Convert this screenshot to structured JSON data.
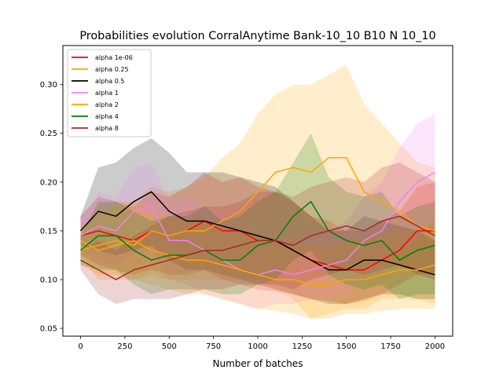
{
  "chart_data": {
    "type": "line",
    "title": "Probabilities evolution CorralAnytime Bank-10_10 B10 N 10_10",
    "xlabel": "Number of batches",
    "ylabel": "",
    "xlim": [
      -100,
      2100
    ],
    "ylim": [
      0.042,
      0.34
    ],
    "xticks": [
      0,
      250,
      500,
      750,
      1000,
      1250,
      1500,
      1750,
      2000
    ],
    "yticks": [
      0.05,
      0.1,
      0.15,
      0.2,
      0.25,
      0.3
    ],
    "xtick_labels": [
      "0",
      "250",
      "500",
      "750",
      "1000",
      "1250",
      "1500",
      "1750",
      "2000"
    ],
    "ytick_labels": [
      "0.05",
      "0.10",
      "0.15",
      "0.20",
      "0.25",
      "0.30"
    ],
    "legend_position": "top-left",
    "grid": false,
    "shaded_bands": true,
    "x": [
      0,
      100,
      200,
      300,
      400,
      500,
      600,
      700,
      800,
      900,
      1000,
      1100,
      1200,
      1300,
      1400,
      1500,
      1600,
      1700,
      1800,
      1900,
      2000
    ],
    "series": [
      {
        "name": "alpha 1e-06",
        "color": "#ff0000",
        "values": [
          0.145,
          0.15,
          0.145,
          0.14,
          0.15,
          0.145,
          0.15,
          0.16,
          0.15,
          0.15,
          0.14,
          0.14,
          0.13,
          0.12,
          0.115,
          0.11,
          0.11,
          0.12,
          0.13,
          0.15,
          0.15
        ],
        "lower": [
          0.125,
          0.115,
          0.11,
          0.105,
          0.11,
          0.105,
          0.105,
          0.11,
          0.1,
          0.095,
          0.09,
          0.088,
          0.085,
          0.08,
          0.078,
          0.075,
          0.078,
          0.085,
          0.095,
          0.105,
          0.105
        ],
        "upper": [
          0.165,
          0.185,
          0.18,
          0.175,
          0.19,
          0.185,
          0.195,
          0.21,
          0.2,
          0.205,
          0.195,
          0.19,
          0.18,
          0.165,
          0.16,
          0.15,
          0.15,
          0.16,
          0.17,
          0.195,
          0.2
        ]
      },
      {
        "name": "alpha 0.25",
        "color": "#ffa500",
        "values": [
          0.13,
          0.135,
          0.14,
          0.135,
          0.15,
          0.145,
          0.15,
          0.15,
          0.16,
          0.17,
          0.19,
          0.21,
          0.215,
          0.21,
          0.225,
          0.225,
          0.19,
          0.18,
          0.17,
          0.155,
          0.15
        ],
        "lower": [
          0.115,
          0.105,
          0.105,
          0.1,
          0.105,
          0.1,
          0.1,
          0.1,
          0.1,
          0.1,
          0.1,
          0.09,
          0.08,
          0.06,
          0.065,
          0.07,
          0.07,
          0.08,
          0.08,
          0.08,
          0.075
        ],
        "upper": [
          0.145,
          0.175,
          0.18,
          0.18,
          0.195,
          0.19,
          0.195,
          0.205,
          0.225,
          0.24,
          0.27,
          0.29,
          0.3,
          0.3,
          0.31,
          0.32,
          0.28,
          0.26,
          0.24,
          0.22,
          0.215
        ]
      },
      {
        "name": "alpha 0.5",
        "color": "#000000",
        "values": [
          0.15,
          0.17,
          0.165,
          0.18,
          0.19,
          0.17,
          0.16,
          0.16,
          0.155,
          0.15,
          0.145,
          0.14,
          0.13,
          0.12,
          0.11,
          0.11,
          0.12,
          0.12,
          0.115,
          0.11,
          0.105
        ],
        "lower": [
          0.135,
          0.13,
          0.125,
          0.13,
          0.135,
          0.12,
          0.11,
          0.11,
          0.105,
          0.1,
          0.095,
          0.09,
          0.085,
          0.08,
          0.075,
          0.075,
          0.08,
          0.085,
          0.085,
          0.08,
          0.08
        ],
        "upper": [
          0.165,
          0.215,
          0.22,
          0.235,
          0.245,
          0.23,
          0.21,
          0.21,
          0.21,
          0.205,
          0.2,
          0.195,
          0.18,
          0.165,
          0.15,
          0.15,
          0.165,
          0.16,
          0.155,
          0.15,
          0.14
        ]
      },
      {
        "name": "alpha 1",
        "color": "#ee82ee",
        "values": [
          0.145,
          0.155,
          0.15,
          0.17,
          0.175,
          0.14,
          0.14,
          0.13,
          0.12,
          0.11,
          0.105,
          0.11,
          0.105,
          0.11,
          0.115,
          0.12,
          0.14,
          0.15,
          0.18,
          0.2,
          0.21
        ],
        "lower": [
          0.13,
          0.12,
          0.115,
          0.125,
          0.13,
          0.1,
          0.095,
          0.085,
          0.08,
          0.075,
          0.07,
          0.075,
          0.075,
          0.08,
          0.08,
          0.085,
          0.1,
          0.105,
          0.13,
          0.14,
          0.15
        ],
        "upper": [
          0.16,
          0.19,
          0.185,
          0.215,
          0.22,
          0.18,
          0.185,
          0.175,
          0.165,
          0.15,
          0.14,
          0.145,
          0.14,
          0.145,
          0.15,
          0.16,
          0.185,
          0.2,
          0.235,
          0.26,
          0.27
        ]
      },
      {
        "name": "alpha 2",
        "color": "#ffa500",
        "values": [
          0.14,
          0.13,
          0.135,
          0.14,
          0.13,
          0.125,
          0.12,
          0.12,
          0.115,
          0.11,
          0.105,
          0.1,
          0.1,
          0.095,
          0.095,
          0.1,
          0.1,
          0.105,
          0.11,
          0.11,
          0.115
        ],
        "lower": [
          0.125,
          0.1,
          0.1,
          0.1,
          0.095,
          0.09,
          0.085,
          0.085,
          0.08,
          0.075,
          0.07,
          0.068,
          0.065,
          0.06,
          0.06,
          0.065,
          0.065,
          0.068,
          0.07,
          0.07,
          0.07
        ],
        "upper": [
          0.155,
          0.165,
          0.175,
          0.18,
          0.17,
          0.165,
          0.16,
          0.16,
          0.155,
          0.15,
          0.145,
          0.14,
          0.14,
          0.135,
          0.135,
          0.14,
          0.14,
          0.145,
          0.15,
          0.15,
          0.16
        ]
      },
      {
        "name": "alpha 4",
        "color": "#008000",
        "values": [
          0.13,
          0.145,
          0.145,
          0.13,
          0.12,
          0.125,
          0.125,
          0.13,
          0.12,
          0.12,
          0.135,
          0.14,
          0.165,
          0.18,
          0.15,
          0.14,
          0.135,
          0.14,
          0.12,
          0.13,
          0.135
        ],
        "lower": [
          0.115,
          0.11,
          0.11,
          0.095,
          0.085,
          0.09,
          0.09,
          0.09,
          0.085,
          0.085,
          0.095,
          0.1,
          0.12,
          0.13,
          0.105,
          0.095,
          0.09,
          0.095,
          0.08,
          0.085,
          0.085
        ],
        "upper": [
          0.145,
          0.18,
          0.18,
          0.17,
          0.16,
          0.165,
          0.165,
          0.175,
          0.16,
          0.165,
          0.18,
          0.19,
          0.22,
          0.25,
          0.205,
          0.19,
          0.185,
          0.19,
          0.165,
          0.175,
          0.18
        ]
      },
      {
        "name": "alpha 8",
        "color": "#a52a2a",
        "values": [
          0.12,
          0.11,
          0.1,
          0.11,
          0.115,
          0.12,
          0.125,
          0.13,
          0.13,
          0.135,
          0.14,
          0.14,
          0.135,
          0.145,
          0.15,
          0.155,
          0.15,
          0.16,
          0.165,
          0.155,
          0.145
        ],
        "lower": [
          0.11,
          0.085,
          0.075,
          0.08,
          0.08,
          0.08,
          0.085,
          0.09,
          0.09,
          0.095,
          0.095,
          0.095,
          0.09,
          0.1,
          0.105,
          0.11,
          0.105,
          0.11,
          0.115,
          0.105,
          0.1
        ],
        "upper": [
          0.13,
          0.14,
          0.13,
          0.145,
          0.155,
          0.165,
          0.17,
          0.175,
          0.175,
          0.18,
          0.19,
          0.19,
          0.185,
          0.195,
          0.2,
          0.205,
          0.2,
          0.215,
          0.22,
          0.21,
          0.2
        ]
      }
    ]
  }
}
